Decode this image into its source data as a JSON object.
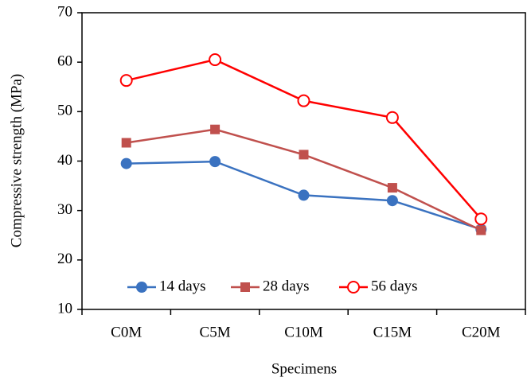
{
  "chart_data": {
    "type": "line",
    "x_label": "Specimens",
    "y_label": "Compressive strength (MPa)",
    "categories": [
      "C0M",
      "C5M",
      "C10M",
      "C15M",
      "C20M"
    ],
    "series": [
      {
        "name": "14 days",
        "color": "#3a72c0",
        "marker": "circle",
        "values": [
          39.5,
          39.9,
          33.1,
          32.0,
          26.2
        ]
      },
      {
        "name": "28 days",
        "color": "#c0504d",
        "marker": "square",
        "values": [
          43.7,
          46.4,
          41.3,
          34.6,
          26.0
        ]
      },
      {
        "name": "56 days",
        "color": "#ff0000",
        "marker": "open-circle",
        "values": [
          56.3,
          60.5,
          52.2,
          48.8,
          28.3
        ]
      }
    ],
    "ylim": [
      10,
      70
    ],
    "yticks": [
      10,
      20,
      30,
      40,
      50,
      60,
      70
    ],
    "legend": "bottom",
    "grid": false
  }
}
